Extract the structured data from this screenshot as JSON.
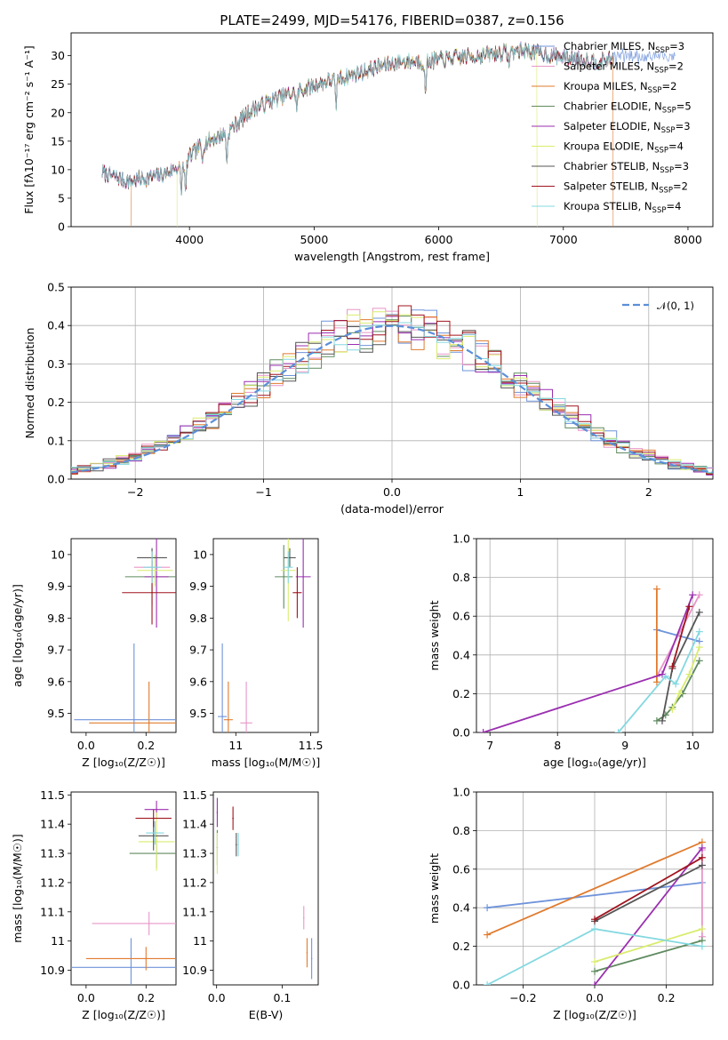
{
  "colors": {
    "chabrier_miles": "#6f93da",
    "salpeter_miles": "#e896c8",
    "kroupa_miles": "#e07b2f",
    "chabrier_elodie": "#5f8a5f",
    "salpeter_elodie": "#9b2fb0",
    "kroupa_elodie": "#d9ec6e",
    "chabrier_stelib": "#555555",
    "salpeter_stelib": "#a0141e",
    "kroupa_stelib": "#84d8e0",
    "normal_curve": "#5b8fd9"
  },
  "chart_data": [
    {
      "id": "spectrum",
      "type": "line",
      "title": "PLATE=2499, MJD=54176, FIBERID=0387, z=0.156",
      "xlabel": "wavelength [Angstrom, rest frame]",
      "ylabel": "Flux [fλ10⁻¹⁷ erg cm⁻² s⁻¹ A⁻¹]",
      "xlim": [
        3050,
        8200
      ],
      "ylim": [
        0,
        34
      ],
      "xticks": [
        4000,
        5000,
        6000,
        7000,
        8000
      ],
      "yticks": [
        0,
        5,
        10,
        15,
        20,
        25,
        30
      ],
      "grid": false,
      "legend_position": "top-right",
      "legend": [
        {
          "label": "Chabrier MILES, N",
          "sub": "SSP",
          "tail": "=3",
          "color_key": "chabrier_miles"
        },
        {
          "label": "Salpeter MILES, N",
          "sub": "SSP",
          "tail": "=2",
          "color_key": "salpeter_miles"
        },
        {
          "label": "Kroupa MILES, N",
          "sub": "SSP",
          "tail": "=2",
          "color_key": "kroupa_miles"
        },
        {
          "label": "Chabrier ELODIE, N",
          "sub": "SSP",
          "tail": "=5",
          "color_key": "chabrier_elodie"
        },
        {
          "label": "Salpeter ELODIE, N",
          "sub": "SSP",
          "tail": "=3",
          "color_key": "salpeter_elodie"
        },
        {
          "label": "Kroupa ELODIE, N",
          "sub": "SSP",
          "tail": "=4",
          "color_key": "kroupa_elodie"
        },
        {
          "label": "Chabrier STELIB, N",
          "sub": "SSP",
          "tail": "=3",
          "color_key": "chabrier_stelib"
        },
        {
          "label": "Salpeter STELIB, N",
          "sub": "SSP",
          "tail": "=2",
          "color_key": "salpeter_stelib"
        },
        {
          "label": "Kroupa STELIB, N",
          "sub": "SSP",
          "tail": "=4",
          "color_key": "kroupa_stelib"
        }
      ],
      "continuum": [
        [
          3300,
          9.5
        ],
        [
          3500,
          8.0
        ],
        [
          3650,
          8.5
        ],
        [
          3800,
          9.2
        ],
        [
          3950,
          11.0
        ],
        [
          4100,
          14.5
        ],
        [
          4300,
          16.5
        ],
        [
          4500,
          20.5
        ],
        [
          4700,
          22.5
        ],
        [
          4900,
          24.0
        ],
        [
          5100,
          25.5
        ],
        [
          5300,
          26.5
        ],
        [
          5500,
          28.0
        ],
        [
          5700,
          29.0
        ],
        [
          5900,
          29.0
        ],
        [
          6100,
          29.5
        ],
        [
          6300,
          30.0
        ],
        [
          6500,
          30.5
        ],
        [
          6700,
          31.0
        ],
        [
          6900,
          30.0
        ],
        [
          7100,
          29.5
        ],
        [
          7300,
          29.0
        ],
        [
          7450,
          30.0
        ]
      ],
      "absorption_features": [
        [
          3933,
          5.0
        ],
        [
          3968,
          6.0
        ],
        [
          4102,
          3.0
        ],
        [
          4300,
          5.0
        ],
        [
          4861,
          3.0
        ],
        [
          5175,
          5.0
        ],
        [
          5893,
          6.0
        ],
        [
          6563,
          2.0
        ]
      ],
      "noise_amplitude": 1.3,
      "model_cutoffs": {
        "kroupa_miles": [
          3530,
          7400
        ],
        "kroupa_elodie": [
          3900,
          6790
        ],
        "chabrier_stelib": [
          3300,
          7400
        ],
        "data_end": 7900
      }
    },
    {
      "id": "residual_hist",
      "type": "histogram",
      "xlabel": "(data-model)/error",
      "ylabel": "Normed distribution",
      "xlim": [
        -2.5,
        2.5
      ],
      "ylim": [
        0,
        0.5
      ],
      "xticks": [
        -2,
        -1,
        0,
        1,
        2
      ],
      "yticks": [
        0.0,
        0.1,
        0.2,
        0.3,
        0.4,
        0.5
      ],
      "bin_width": 0.1,
      "grid": true,
      "legend_position": "top-right",
      "legend": [
        {
          "label": "𝒩(0, 1)",
          "color_key": "normal_curve"
        }
      ],
      "curve": "normal(0,1)"
    },
    {
      "id": "age_vs_Z",
      "type": "errorbar",
      "xlabel": "Z [log₁₀(Z/Z☉)]",
      "ylabel": "age  [log₁₀(age/yr)]",
      "xlim": [
        -0.05,
        0.3
      ],
      "ylim": [
        9.44,
        10.05
      ],
      "xticks": [
        0.0,
        0.2
      ],
      "yticks": [
        9.5,
        9.6,
        9.7,
        9.8,
        9.9,
        10.0
      ],
      "grid": false,
      "points": [
        {
          "color_key": "chabrier_miles",
          "x": 0.16,
          "y": 9.48,
          "xerr": 0.2,
          "yerr": 0.24
        },
        {
          "color_key": "kroupa_miles",
          "x": 0.21,
          "y": 9.47,
          "xerr": 0.2,
          "yerr": 0.13
        },
        {
          "color_key": "salpeter_miles",
          "x": 0.22,
          "y": 9.96,
          "xerr": 0.06,
          "yerr": 0.05
        },
        {
          "color_key": "chabrier_elodie",
          "x": 0.22,
          "y": 9.93,
          "xerr": 0.09,
          "yerr": 0.09
        },
        {
          "color_key": "salpeter_elodie",
          "x": 0.235,
          "y": 9.93,
          "xerr": 0.04,
          "yerr": 0.16
        },
        {
          "color_key": "kroupa_elodie",
          "x": 0.23,
          "y": 9.95,
          "xerr": 0.06,
          "yerr": 0.05
        },
        {
          "color_key": "chabrier_stelib",
          "x": 0.22,
          "y": 9.99,
          "xerr": 0.05,
          "yerr": 0.03
        },
        {
          "color_key": "salpeter_stelib",
          "x": 0.22,
          "y": 9.88,
          "xerr": 0.1,
          "yerr": 0.1
        },
        {
          "color_key": "kroupa_stelib",
          "x": 0.22,
          "y": 9.96,
          "xerr": 0.03,
          "yerr": 0.05
        }
      ]
    },
    {
      "id": "age_vs_mass",
      "type": "errorbar",
      "xlabel": "mass [log₁₀(M/M☉)]",
      "ylabel": "",
      "xlim": [
        10.85,
        11.55
      ],
      "ylim": [
        9.44,
        10.05
      ],
      "xticks": [
        11.0,
        11.5
      ],
      "yticks": [
        9.5,
        9.6,
        9.7,
        9.8,
        9.9,
        10.0
      ],
      "grid": false,
      "points": [
        {
          "color_key": "chabrier_miles",
          "x": 10.91,
          "y": 9.49,
          "xerr": 0.03,
          "yerr": 0.23
        },
        {
          "color_key": "kroupa_miles",
          "x": 10.95,
          "y": 9.48,
          "xerr": 0.03,
          "yerr": 0.12
        },
        {
          "color_key": "salpeter_miles",
          "x": 11.07,
          "y": 9.47,
          "xerr": 0.04,
          "yerr": 0.13
        },
        {
          "color_key": "chabrier_elodie",
          "x": 11.32,
          "y": 9.93,
          "xerr": 0.06,
          "yerr": 0.1
        },
        {
          "color_key": "salpeter_elodie",
          "x": 11.45,
          "y": 9.93,
          "xerr": 0.05,
          "yerr": 0.16
        },
        {
          "color_key": "kroupa_elodie",
          "x": 11.35,
          "y": 9.95,
          "xerr": 0.05,
          "yerr": 0.16
        },
        {
          "color_key": "chabrier_stelib",
          "x": 11.36,
          "y": 9.99,
          "xerr": 0.04,
          "yerr": 0.03
        },
        {
          "color_key": "salpeter_stelib",
          "x": 11.41,
          "y": 9.88,
          "xerr": 0.03,
          "yerr": 0.08
        },
        {
          "color_key": "kroupa_stelib",
          "x": 11.35,
          "y": 9.96,
          "xerr": 0.03,
          "yerr": 0.05
        }
      ]
    },
    {
      "id": "weight_vs_age",
      "type": "line",
      "xlabel": "age  [log₁₀(age/yr)]",
      "ylabel": "mass weight",
      "xlim": [
        6.8,
        10.3
      ],
      "ylim": [
        0,
        1.0
      ],
      "xticks": [
        7,
        8,
        9,
        10
      ],
      "yticks": [
        0.0,
        0.2,
        0.4,
        0.6,
        0.8,
        1.0
      ],
      "grid": true,
      "series": [
        {
          "color_key": "chabrier_miles",
          "x": [
            9.47,
            10.1
          ],
          "y": [
            0.53,
            0.47
          ]
        },
        {
          "color_key": "salpeter_miles",
          "x": [
            9.47,
            10.1
          ],
          "y": [
            0.29,
            0.71
          ]
        },
        {
          "color_key": "kroupa_miles",
          "x": [
            9.47,
            9.47
          ],
          "y": [
            0.74,
            0.26
          ]
        },
        {
          "color_key": "chabrier_elodie",
          "x": [
            9.47,
            9.6,
            9.7,
            9.85,
            10.1
          ],
          "y": [
            0.06,
            0.09,
            0.13,
            0.2,
            0.37
          ]
        },
        {
          "color_key": "salpeter_elodie",
          "x": [
            6.9,
            9.55,
            10.0
          ],
          "y": [
            0.0,
            0.3,
            0.71
          ]
        },
        {
          "color_key": "kroupa_elodie",
          "x": [
            9.7,
            9.8,
            9.95,
            10.1
          ],
          "y": [
            0.12,
            0.2,
            0.3,
            0.44
          ]
        },
        {
          "color_key": "chabrier_stelib",
          "x": [
            9.55,
            9.7,
            10.1
          ],
          "y": [
            0.06,
            0.33,
            0.62
          ]
        },
        {
          "color_key": "salpeter_stelib",
          "x": [
            9.7,
            9.95
          ],
          "y": [
            0.34,
            0.65
          ]
        },
        {
          "color_key": "kroupa_stelib",
          "x": [
            8.9,
            9.6,
            9.75,
            10.1
          ],
          "y": [
            0.0,
            0.29,
            0.25,
            0.52
          ]
        }
      ]
    },
    {
      "id": "mass_vs_Z",
      "type": "errorbar",
      "xlabel": "Z [log₁₀(Z/Z☉)]",
      "ylabel": "mass [log₁₀(M/M☉)]",
      "xlim": [
        -0.05,
        0.3
      ],
      "ylim": [
        10.85,
        11.51
      ],
      "xticks": [
        0.0,
        0.2
      ],
      "yticks": [
        10.9,
        11.0,
        11.1,
        11.2,
        11.3,
        11.4,
        11.5
      ],
      "grid": false,
      "points": [
        {
          "color_key": "chabrier_miles",
          "x": 0.15,
          "y": 10.91,
          "xerr": 0.2,
          "yerr": 0.1
        },
        {
          "color_key": "kroupa_miles",
          "x": 0.2,
          "y": 10.94,
          "xerr": 0.2,
          "yerr": 0.04
        },
        {
          "color_key": "salpeter_miles",
          "x": 0.21,
          "y": 11.06,
          "xerr": 0.19,
          "yerr": 0.04
        },
        {
          "color_key": "chabrier_elodie",
          "x": 0.235,
          "y": 11.3,
          "xerr": 0.09,
          "yerr": 0.05
        },
        {
          "color_key": "salpeter_elodie",
          "x": 0.235,
          "y": 11.45,
          "xerr": 0.04,
          "yerr": 0.03
        },
        {
          "color_key": "kroupa_elodie",
          "x": 0.235,
          "y": 11.34,
          "xerr": 0.06,
          "yerr": 0.1
        },
        {
          "color_key": "chabrier_stelib",
          "x": 0.225,
          "y": 11.36,
          "xerr": 0.05,
          "yerr": 0.05
        },
        {
          "color_key": "salpeter_stelib",
          "x": 0.225,
          "y": 11.42,
          "xerr": 0.06,
          "yerr": 0.03
        },
        {
          "color_key": "kroupa_stelib",
          "x": 0.23,
          "y": 11.37,
          "xerr": 0.03,
          "yerr": 0.04
        }
      ]
    },
    {
      "id": "mass_vs_ebv",
      "type": "errorbar",
      "xlabel": "E(B-V)",
      "ylabel": "",
      "xlim": [
        -0.005,
        0.155
      ],
      "ylim": [
        10.85,
        11.51
      ],
      "xticks": [
        0.0,
        0.1
      ],
      "yticks": [
        10.9,
        11.0,
        11.1,
        11.2,
        11.3,
        11.4,
        11.5
      ],
      "grid": false,
      "points": [
        {
          "color_key": "chabrier_miles",
          "x": 0.145,
          "y": 10.94,
          "xerr": 0,
          "yerr": 0.07
        },
        {
          "color_key": "kroupa_miles",
          "x": 0.138,
          "y": 10.96,
          "xerr": 0,
          "yerr": 0.05
        },
        {
          "color_key": "salpeter_miles",
          "x": 0.133,
          "y": 11.08,
          "xerr": 0,
          "yerr": 0.04
        },
        {
          "color_key": "chabrier_elodie",
          "x": 0.001,
          "y": 11.32,
          "xerr": 0,
          "yerr": 0.06
        },
        {
          "color_key": "salpeter_elodie",
          "x": 0.001,
          "y": 11.44,
          "xerr": 0,
          "yerr": 0.05
        },
        {
          "color_key": "kroupa_elodie",
          "x": 0.001,
          "y": 11.3,
          "xerr": 0,
          "yerr": 0.07
        },
        {
          "color_key": "chabrier_stelib",
          "x": 0.03,
          "y": 11.33,
          "xerr": 0,
          "yerr": 0.04
        },
        {
          "color_key": "salpeter_stelib",
          "x": 0.025,
          "y": 11.42,
          "xerr": 0,
          "yerr": 0.04
        },
        {
          "color_key": "kroupa_stelib",
          "x": 0.033,
          "y": 11.33,
          "xerr": 0,
          "yerr": 0.04
        }
      ]
    },
    {
      "id": "weight_vs_Z",
      "type": "line",
      "xlabel": "Z [log₁₀(Z/Z☉)]",
      "ylabel": "mass weight",
      "xlim": [
        -0.33,
        0.33
      ],
      "ylim": [
        0,
        1.0
      ],
      "xticks": [
        -0.2,
        0.0,
        0.2
      ],
      "yticks": [
        0.0,
        0.2,
        0.4,
        0.6,
        0.8,
        1.0
      ],
      "grid": true,
      "series": [
        {
          "color_key": "chabrier_miles",
          "x": [
            -0.3,
            0.3
          ],
          "y": [
            0.4,
            0.53
          ]
        },
        {
          "color_key": "kroupa_miles",
          "x": [
            -0.3,
            0.3
          ],
          "y": [
            0.26,
            0.74
          ]
        },
        {
          "color_key": "salpeter_miles",
          "x": [
            0.3,
            0.3
          ],
          "y": [
            0.25,
            0.7
          ]
        },
        {
          "color_key": "chabrier_elodie",
          "x": [
            0.0,
            0.3
          ],
          "y": [
            0.07,
            0.23
          ]
        },
        {
          "color_key": "salpeter_elodie",
          "x": [
            0.0,
            0.3
          ],
          "y": [
            0.0,
            0.71
          ]
        },
        {
          "color_key": "kroupa_elodie",
          "x": [
            0.0,
            0.3
          ],
          "y": [
            0.12,
            0.29
          ]
        },
        {
          "color_key": "chabrier_stelib",
          "x": [
            0.0,
            0.3
          ],
          "y": [
            0.33,
            0.62
          ]
        },
        {
          "color_key": "salpeter_stelib",
          "x": [
            0.0,
            0.3
          ],
          "y": [
            0.34,
            0.66
          ]
        },
        {
          "color_key": "kroupa_stelib",
          "x": [
            -0.3,
            0.0,
            0.3
          ],
          "y": [
            0.0,
            0.29,
            0.2
          ]
        }
      ]
    }
  ]
}
